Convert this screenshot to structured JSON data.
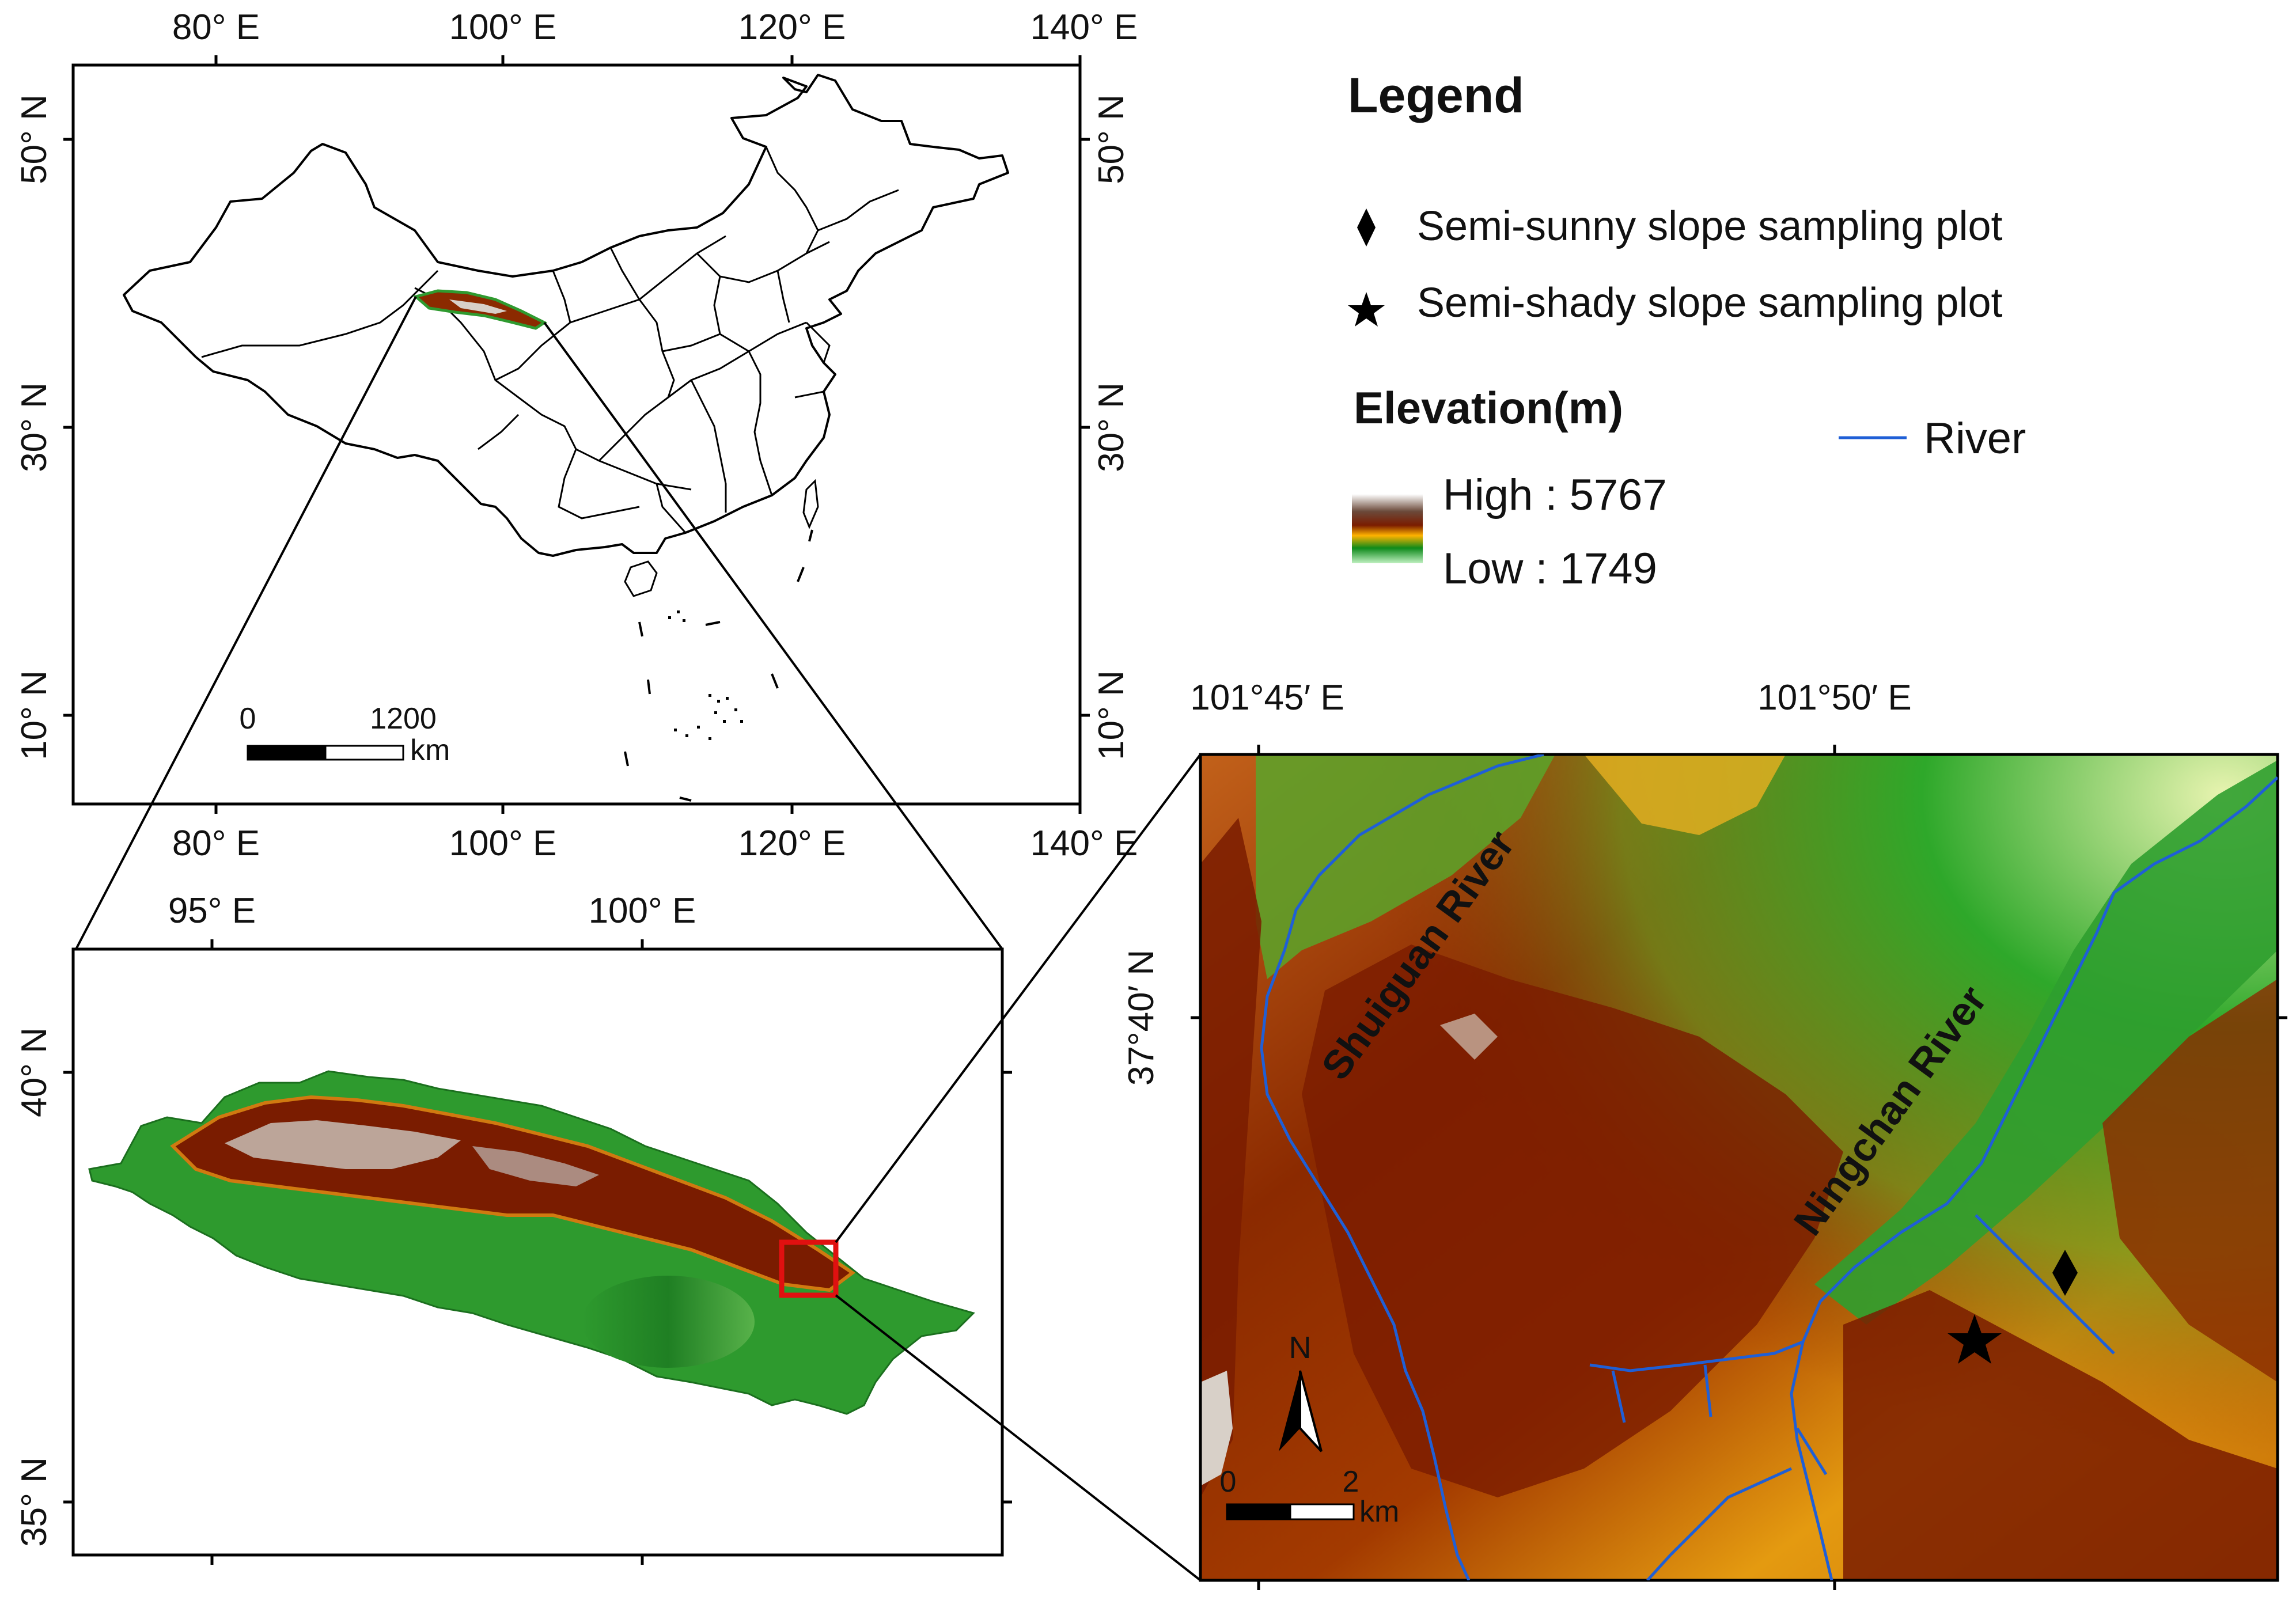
{
  "china_map": {
    "top_ticks": [
      "80° E",
      "100° E",
      "120° E",
      "140° E"
    ],
    "bottom_ticks": [
      "80° E",
      "100° E",
      "120° E",
      "140° E"
    ],
    "left_ticks": [
      "50° N",
      "30° N",
      "10° N"
    ],
    "right_ticks": [
      "50° N",
      "30° N",
      "10° N"
    ],
    "scale_bar": {
      "start": "0",
      "end": "1200",
      "unit": "km"
    }
  },
  "region_map": {
    "top_ticks": [
      "95° E",
      "100° E"
    ],
    "left_ticks": [
      "40° N",
      "35° N"
    ]
  },
  "study_map": {
    "top_ticks": [
      "101°45′ E",
      "101°50′ E"
    ],
    "left_ticks": [
      "37°40′ N"
    ],
    "rivers": [
      "Shuiguan River",
      "Ningchan River"
    ],
    "north_arrow": "N",
    "scale_bar": {
      "start": "0",
      "end": "2",
      "unit": "km"
    }
  },
  "legend": {
    "title": "Legend",
    "items": [
      {
        "symbol": "diamond-icon",
        "label": "Semi-sunny slope sampling plot"
      },
      {
        "symbol": "star-icon",
        "label": "Semi-shady slope sampling plot"
      }
    ],
    "elevation_title": "Elevation(m)",
    "elevation_high": "High : 5767",
    "elevation_low": "Low : 1749",
    "river_label": "River",
    "colors": {
      "river": "#1f5fd6",
      "highlight_box": "#e01010",
      "ramp": [
        "#ffffff",
        "#6b4a3a",
        "#7a1c00",
        "#ffb300",
        "#0e8a1a",
        "#bff0c0"
      ]
    }
  }
}
